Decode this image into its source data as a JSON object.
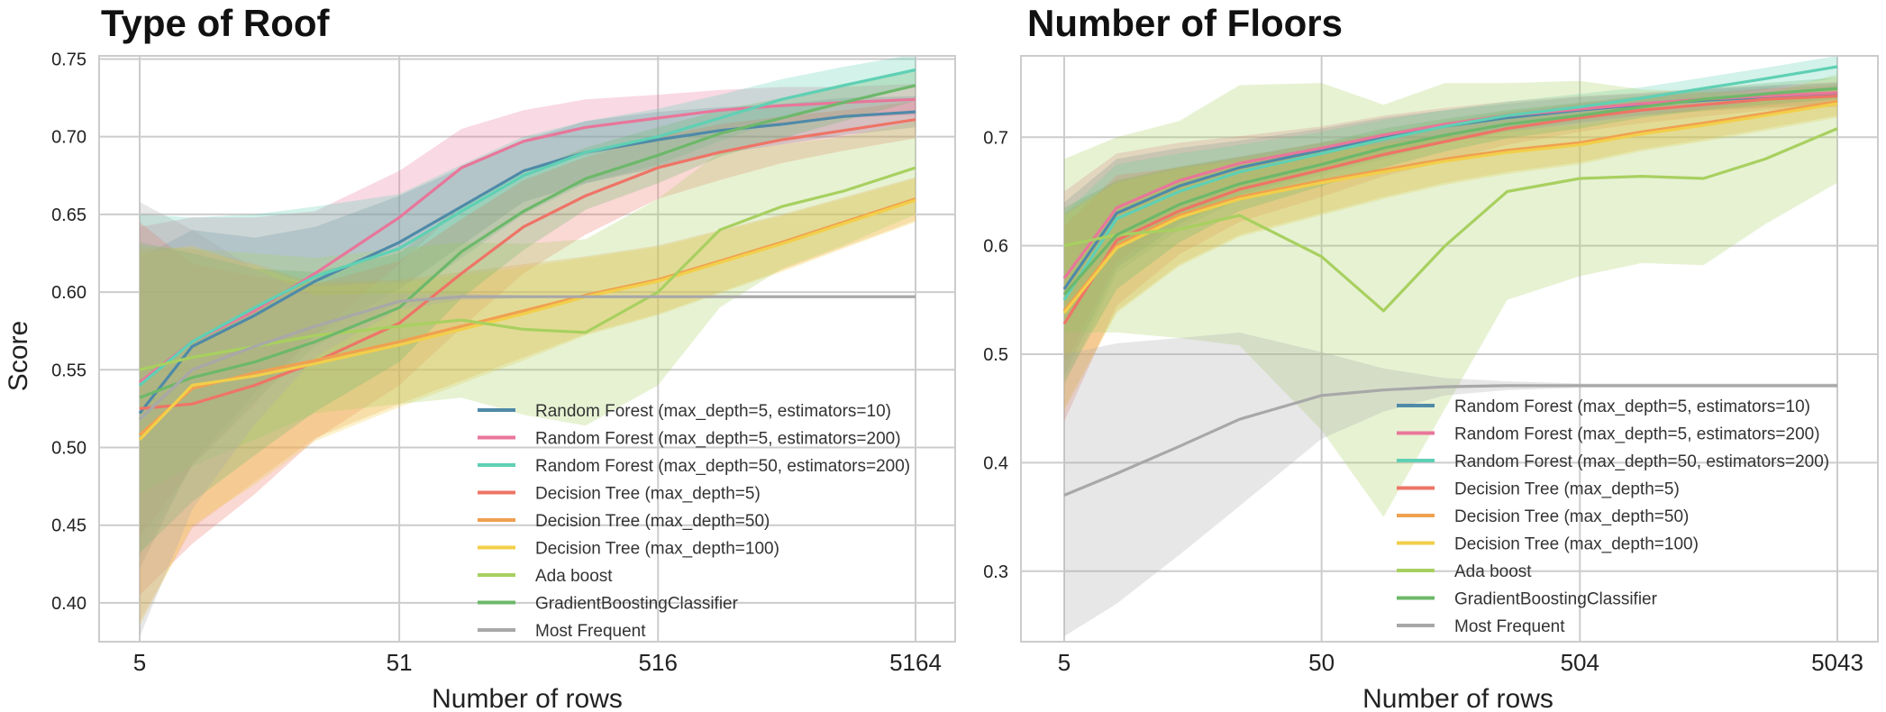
{
  "chart_data": [
    {
      "type": "line",
      "title": "Type of Roof",
      "xlabel": "Number of rows",
      "ylabel": "Score",
      "xscale": "log",
      "xticks": [
        5,
        51,
        516,
        5164
      ],
      "xlim": [
        5,
        5164
      ],
      "ylim": [
        0.375,
        0.752
      ],
      "yticks": [
        0.4,
        0.45,
        0.5,
        0.55,
        0.6,
        0.65,
        0.7,
        0.75
      ],
      "ytick_labels": [
        "0.40",
        "0.45",
        "0.50",
        "0.55",
        "0.60",
        "0.65",
        "0.70",
        "0.75"
      ],
      "legend_position": "lower-right",
      "grid": true,
      "x": [
        5,
        8,
        14,
        24,
        51,
        89,
        155,
        270,
        516,
        897,
        1560,
        2715,
        5164
      ],
      "series": [
        {
          "name": "Random Forest (max_depth=5, estimators=10)",
          "color": "#4f8aa8",
          "values": [
            0.522,
            0.565,
            0.585,
            0.607,
            0.632,
            0.655,
            0.678,
            0.69,
            0.698,
            0.704,
            0.708,
            0.713,
            0.716
          ],
          "band": [
            0.1,
            0.075,
            0.05,
            0.035,
            0.03,
            0.025,
            0.02,
            0.02,
            0.018,
            0.015,
            0.013,
            0.012,
            0.01
          ]
        },
        {
          "name": "Random Forest (max_depth=5, estimators=200)",
          "color": "#e8769a",
          "values": [
            0.542,
            0.568,
            0.588,
            0.612,
            0.648,
            0.68,
            0.697,
            0.706,
            0.712,
            0.717,
            0.72,
            0.722,
            0.724
          ],
          "band": [
            0.1,
            0.08,
            0.06,
            0.04,
            0.03,
            0.025,
            0.02,
            0.018,
            0.015,
            0.013,
            0.012,
            0.01,
            0.01
          ]
        },
        {
          "name": "Random Forest (max_depth=50, estimators=200)",
          "color": "#5fd0b4",
          "values": [
            0.54,
            0.568,
            0.59,
            0.61,
            0.628,
            0.652,
            0.675,
            0.69,
            0.7,
            0.712,
            0.724,
            0.733,
            0.743
          ],
          "band": [
            0.11,
            0.08,
            0.06,
            0.045,
            0.035,
            0.03,
            0.025,
            0.02,
            0.018,
            0.015,
            0.013,
            0.012,
            0.01
          ]
        },
        {
          "name": "Decision Tree (max_depth=5)",
          "color": "#ee7466",
          "values": [
            0.525,
            0.528,
            0.54,
            0.555,
            0.58,
            0.612,
            0.642,
            0.662,
            0.68,
            0.69,
            0.698,
            0.704,
            0.711
          ],
          "band": [
            0.12,
            0.09,
            0.07,
            0.05,
            0.04,
            0.035,
            0.03,
            0.025,
            0.02,
            0.018,
            0.015,
            0.013,
            0.012
          ]
        },
        {
          "name": "Decision Tree (max_depth=50)",
          "color": "#f0a050",
          "values": [
            0.508,
            0.538,
            0.548,
            0.556,
            0.568,
            0.578,
            0.588,
            0.598,
            0.608,
            0.62,
            0.632,
            0.645,
            0.66
          ],
          "band": [
            0.12,
            0.09,
            0.07,
            0.05,
            0.04,
            0.035,
            0.03,
            0.025,
            0.022,
            0.02,
            0.018,
            0.016,
            0.014
          ]
        },
        {
          "name": "Decision Tree (max_depth=100)",
          "color": "#f2cf4a",
          "values": [
            0.505,
            0.54,
            0.546,
            0.554,
            0.566,
            0.576,
            0.586,
            0.597,
            0.607,
            0.619,
            0.631,
            0.644,
            0.659
          ],
          "band": [
            0.12,
            0.09,
            0.07,
            0.05,
            0.04,
            0.035,
            0.03,
            0.025,
            0.022,
            0.02,
            0.018,
            0.016,
            0.014
          ]
        },
        {
          "name": "Ada boost",
          "color": "#a8d060",
          "values": [
            0.55,
            0.558,
            0.565,
            0.572,
            0.578,
            0.582,
            0.576,
            0.574,
            0.6,
            0.64,
            0.655,
            0.665,
            0.68
          ],
          "band": [
            0.08,
            0.07,
            0.06,
            0.05,
            0.05,
            0.05,
            0.055,
            0.06,
            0.06,
            0.05,
            0.04,
            0.035,
            0.03
          ]
        },
        {
          "name": "GradientBoostingClassifier",
          "color": "#6db86a",
          "values": [
            0.532,
            0.545,
            0.555,
            0.568,
            0.59,
            0.626,
            0.652,
            0.673,
            0.688,
            0.702,
            0.712,
            0.722,
            0.733
          ],
          "band": [
            0.1,
            0.08,
            0.06,
            0.045,
            0.035,
            0.03,
            0.025,
            0.02,
            0.018,
            0.015,
            0.013,
            0.012,
            0.01
          ]
        },
        {
          "name": "Most Frequent",
          "color": "#a8a8a8",
          "values": [
            0.518,
            0.55,
            0.565,
            0.578,
            0.594,
            0.597,
            0.597,
            0.597,
            0.597,
            0.597,
            0.597,
            0.597,
            0.597
          ],
          "band": [
            0.14,
            0.09,
            0.05,
            0.02,
            0.005,
            0.002,
            0.001,
            0.001,
            0.001,
            0.001,
            0.001,
            0.001,
            0.001
          ]
        }
      ]
    },
    {
      "type": "line",
      "title": "Number of Floors",
      "xlabel": "Number of rows",
      "ylabel": "",
      "xscale": "log",
      "xticks": [
        5,
        50,
        504,
        5043
      ],
      "xlim": [
        5,
        5043
      ],
      "ylim": [
        0.235,
        0.775
      ],
      "yticks": [
        0.3,
        0.4,
        0.5,
        0.6,
        0.7
      ],
      "ytick_labels": [
        "0.3",
        "0.4",
        "0.5",
        "0.6",
        "0.7"
      ],
      "legend_position": "lower-right",
      "grid": true,
      "x": [
        5,
        8,
        14,
        24,
        50,
        87,
        151,
        263,
        504,
        876,
        1523,
        2649,
        5043
      ],
      "series": [
        {
          "name": "Random Forest (max_depth=5, estimators=10)",
          "color": "#4f8aa8",
          "values": [
            0.56,
            0.63,
            0.655,
            0.672,
            0.688,
            0.7,
            0.71,
            0.718,
            0.725,
            0.73,
            0.734,
            0.737,
            0.74
          ],
          "band": [
            0.08,
            0.05,
            0.035,
            0.025,
            0.02,
            0.018,
            0.015,
            0.013,
            0.012,
            0.01,
            0.01,
            0.01,
            0.01
          ]
        },
        {
          "name": "Random Forest (max_depth=5, estimators=200)",
          "color": "#e8769a",
          "values": [
            0.57,
            0.635,
            0.66,
            0.676,
            0.69,
            0.702,
            0.712,
            0.72,
            0.726,
            0.731,
            0.735,
            0.738,
            0.741
          ],
          "band": [
            0.08,
            0.05,
            0.035,
            0.025,
            0.02,
            0.018,
            0.015,
            0.013,
            0.012,
            0.01,
            0.01,
            0.01,
            0.01
          ]
        },
        {
          "name": "Random Forest (max_depth=50, estimators=200)",
          "color": "#5fd0b4",
          "values": [
            0.55,
            0.625,
            0.65,
            0.668,
            0.685,
            0.698,
            0.71,
            0.72,
            0.728,
            0.736,
            0.745,
            0.754,
            0.765
          ],
          "band": [
            0.08,
            0.05,
            0.035,
            0.025,
            0.02,
            0.018,
            0.015,
            0.013,
            0.012,
            0.01,
            0.01,
            0.01,
            0.01
          ]
        },
        {
          "name": "Decision Tree (max_depth=5)",
          "color": "#ee7466",
          "values": [
            0.528,
            0.605,
            0.632,
            0.652,
            0.67,
            0.684,
            0.696,
            0.708,
            0.718,
            0.725,
            0.73,
            0.735,
            0.738
          ],
          "band": [
            0.09,
            0.06,
            0.04,
            0.03,
            0.025,
            0.02,
            0.018,
            0.015,
            0.013,
            0.012,
            0.011,
            0.01,
            0.01
          ]
        },
        {
          "name": "Decision Tree (max_depth=50)",
          "color": "#f0a050",
          "values": [
            0.54,
            0.6,
            0.628,
            0.645,
            0.66,
            0.67,
            0.68,
            0.688,
            0.695,
            0.705,
            0.713,
            0.722,
            0.733
          ],
          "band": [
            0.09,
            0.06,
            0.045,
            0.035,
            0.03,
            0.025,
            0.022,
            0.02,
            0.018,
            0.016,
            0.015,
            0.014,
            0.013
          ]
        },
        {
          "name": "Decision Tree (max_depth=100)",
          "color": "#f2cf4a",
          "values": [
            0.538,
            0.598,
            0.626,
            0.643,
            0.658,
            0.668,
            0.678,
            0.686,
            0.693,
            0.703,
            0.711,
            0.72,
            0.731
          ],
          "band": [
            0.09,
            0.06,
            0.045,
            0.035,
            0.03,
            0.025,
            0.022,
            0.02,
            0.018,
            0.016,
            0.015,
            0.014,
            0.013
          ]
        },
        {
          "name": "Ada boost",
          "color": "#a8d060",
          "values": [
            0.6,
            0.61,
            0.615,
            0.628,
            0.59,
            0.54,
            0.6,
            0.65,
            0.662,
            0.664,
            0.662,
            0.68,
            0.708
          ],
          "band": [
            0.08,
            0.09,
            0.1,
            0.12,
            0.16,
            0.19,
            0.15,
            0.1,
            0.09,
            0.08,
            0.08,
            0.06,
            0.05
          ]
        },
        {
          "name": "GradientBoostingClassifier",
          "color": "#6db86a",
          "values": [
            0.555,
            0.61,
            0.638,
            0.657,
            0.675,
            0.69,
            0.702,
            0.712,
            0.72,
            0.728,
            0.735,
            0.74,
            0.745
          ],
          "band": [
            0.08,
            0.05,
            0.035,
            0.025,
            0.02,
            0.018,
            0.015,
            0.013,
            0.012,
            0.01,
            0.01,
            0.01,
            0.01
          ]
        },
        {
          "name": "Most Frequent",
          "color": "#a8a8a8",
          "values": [
            0.37,
            0.39,
            0.415,
            0.44,
            0.462,
            0.467,
            0.47,
            0.471,
            0.471,
            0.471,
            0.471,
            0.471,
            0.471
          ],
          "band": [
            0.13,
            0.12,
            0.1,
            0.08,
            0.04,
            0.02,
            0.008,
            0.004,
            0.002,
            0.002,
            0.002,
            0.002,
            0.002
          ]
        }
      ]
    }
  ]
}
